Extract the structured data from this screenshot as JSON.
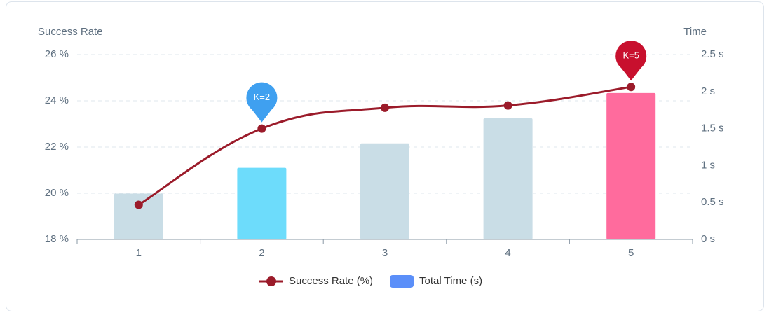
{
  "chart_data": {
    "type": "bar-line",
    "y_axis_title": "Success Rate",
    "y2_axis_title": "Time",
    "categories": [
      "1",
      "2",
      "3",
      "4",
      "5"
    ],
    "series": [
      {
        "name": "Success Rate (%)",
        "type": "line",
        "color": "#9b1b2a",
        "values": [
          19.5,
          22.8,
          23.7,
          23.8,
          24.6
        ]
      },
      {
        "name": "Total Time (s)",
        "type": "bar",
        "axis": "y2",
        "color": "#5b8ff9",
        "bar_colors": [
          "#c9dde6",
          "#6ddcfb",
          "#c9dde6",
          "#c9dde6",
          "#ff6b9d"
        ],
        "values": [
          0.62,
          0.97,
          1.3,
          1.64,
          1.98
        ]
      }
    ],
    "annotations": [
      {
        "text": "K=2",
        "category": "2",
        "color": "#3fa0f0"
      },
      {
        "text": "K=5",
        "category": "5",
        "color": "#c8102e"
      }
    ],
    "ylim": [
      18,
      26
    ],
    "yticks": [
      {
        "value": 18,
        "label": "18 %"
      },
      {
        "value": 20,
        "label": "20 %"
      },
      {
        "value": 22,
        "label": "22 %"
      },
      {
        "value": 24,
        "label": "24 %"
      },
      {
        "value": 26,
        "label": "26 %"
      }
    ],
    "y2lim": [
      0,
      2.5
    ],
    "y2ticks": [
      {
        "value": 0,
        "label": "0 s"
      },
      {
        "value": 0.5,
        "label": "0.5 s"
      },
      {
        "value": 1,
        "label": "1 s"
      },
      {
        "value": 1.5,
        "label": "1.5 s"
      },
      {
        "value": 2,
        "label": "2 s"
      },
      {
        "value": 2.5,
        "label": "2.5 s"
      }
    ],
    "grid": true,
    "legend": "bottom"
  }
}
